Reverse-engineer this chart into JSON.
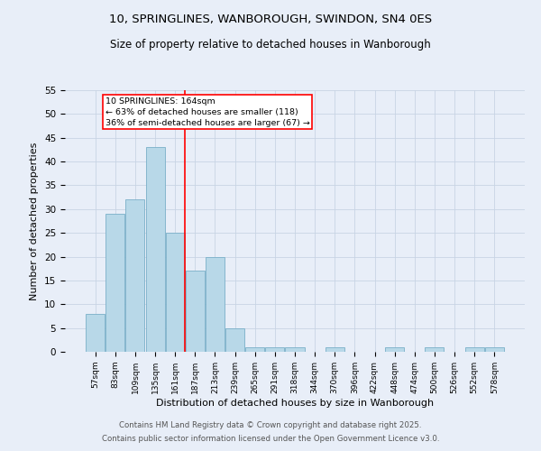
{
  "title1": "10, SPRINGLINES, WANBOROUGH, SWINDON, SN4 0ES",
  "title2": "Size of property relative to detached houses in Wanborough",
  "xlabel": "Distribution of detached houses by size in Wanborough",
  "ylabel": "Number of detached properties",
  "bins": [
    "57sqm",
    "83sqm",
    "109sqm",
    "135sqm",
    "161sqm",
    "187sqm",
    "213sqm",
    "239sqm",
    "265sqm",
    "291sqm",
    "318sqm",
    "344sqm",
    "370sqm",
    "396sqm",
    "422sqm",
    "448sqm",
    "474sqm",
    "500sqm",
    "526sqm",
    "552sqm",
    "578sqm"
  ],
  "values": [
    8,
    29,
    32,
    43,
    25,
    17,
    20,
    5,
    1,
    1,
    1,
    0,
    1,
    0,
    0,
    1,
    0,
    1,
    0,
    1,
    1
  ],
  "bar_color": "#b8d8e8",
  "bar_edge_color": "#7aafc8",
  "annotation_title": "10 SPRINGLINES: 164sqm",
  "annotation_line1": "← 63% of detached houses are smaller (118)",
  "annotation_line2": "36% of semi-detached houses are larger (67) →",
  "ylim": [
    0,
    55
  ],
  "yticks": [
    0,
    5,
    10,
    15,
    20,
    25,
    30,
    35,
    40,
    45,
    50,
    55
  ],
  "footer1": "Contains HM Land Registry data © Crown copyright and database right 2025.",
  "footer2": "Contains public sector information licensed under the Open Government Licence v3.0.",
  "bg_color": "#e8eef8",
  "grid_color": "#c8d4e4"
}
